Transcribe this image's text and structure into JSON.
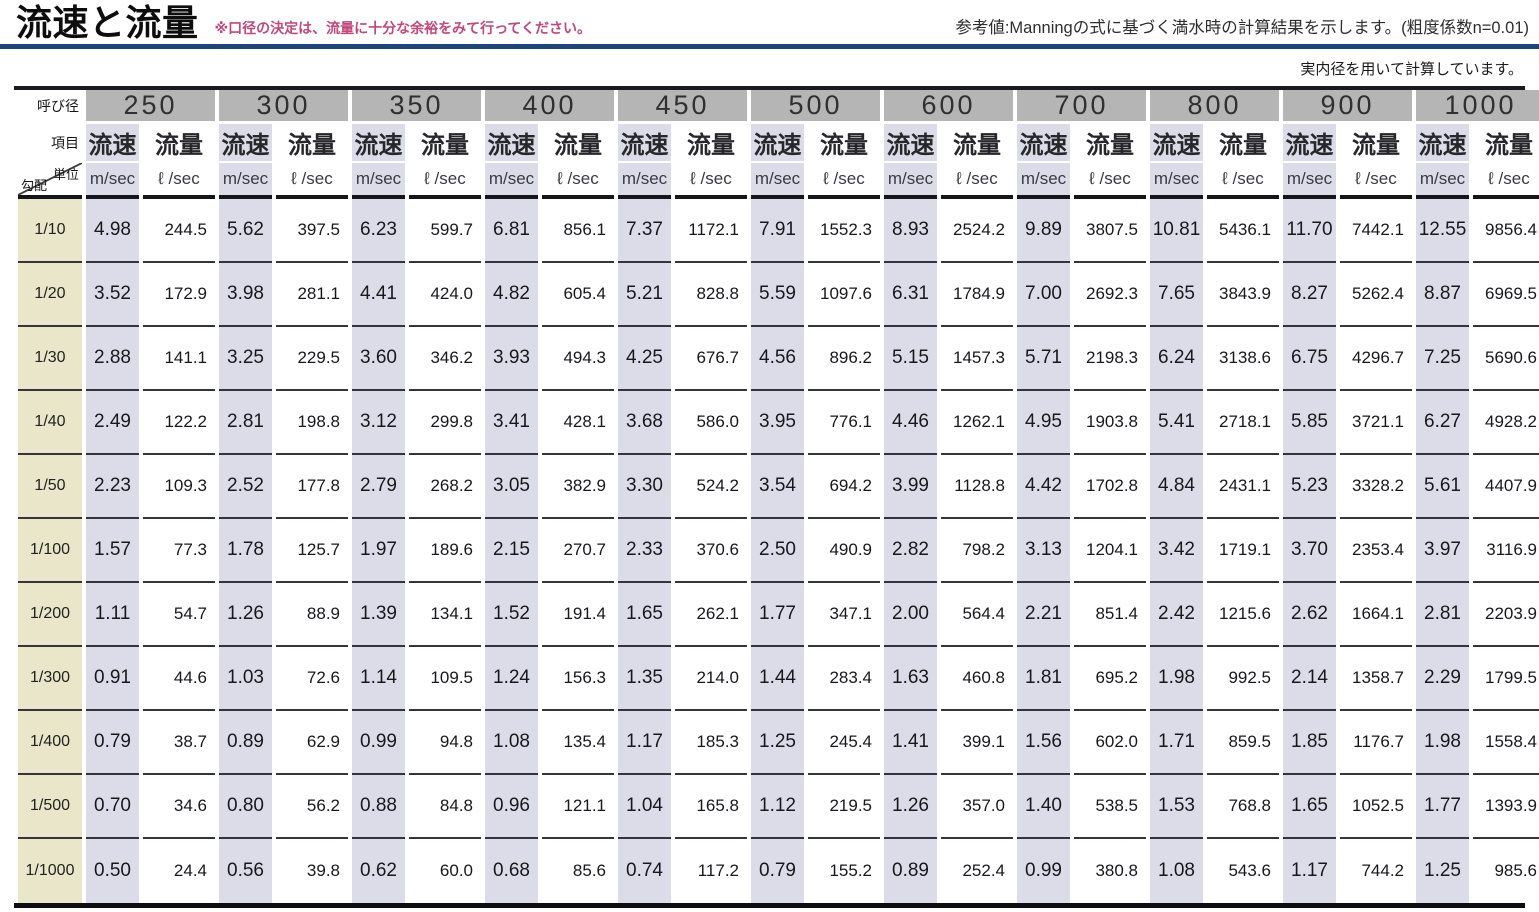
{
  "page": {
    "title": "流速と流量",
    "title_note": "※口径の決定は、流量に十分な余裕をみて行ってください。",
    "reference_note": "参考値:Manningの式に基づく満水時の計算結果を示します。(粗度係数n=0.01)",
    "calc_note": "実内径を用いて計算しています。"
  },
  "colors": {
    "rule_blue": "#1c4579",
    "note_pink": "#c2477b",
    "velocity_column_bg": "#dcdce8",
    "flow_column_bg": "#ffffff",
    "slope_column_bg": "#eae6ca",
    "diameter_header_bg": "#b5b5b5",
    "grid_line": "#34343f"
  },
  "table": {
    "corner": {
      "diameter_label": "呼び径",
      "item_label": "項目",
      "unit_label": "単位",
      "slope_label": "勾配"
    },
    "item_labels": {
      "velocity": "流速",
      "flow": "流量"
    },
    "unit_labels": {
      "velocity": "m/sec",
      "flow": "ℓ /sec"
    },
    "diameters": [
      "250",
      "300",
      "350",
      "400",
      "450",
      "500",
      "600",
      "700",
      "800",
      "900",
      "1000"
    ],
    "rows": [
      {
        "slope": "1/10",
        "values": [
          "4.98",
          "244.5",
          "5.62",
          "397.5",
          "6.23",
          "599.7",
          "6.81",
          "856.1",
          "7.37",
          "1172.1",
          "7.91",
          "1552.3",
          "8.93",
          "2524.2",
          "9.89",
          "3807.5",
          "10.81",
          "5436.1",
          "11.70",
          "7442.1",
          "12.55",
          "9856.4"
        ]
      },
      {
        "slope": "1/20",
        "values": [
          "3.52",
          "172.9",
          "3.98",
          "281.1",
          "4.41",
          "424.0",
          "4.82",
          "605.4",
          "5.21",
          "828.8",
          "5.59",
          "1097.6",
          "6.31",
          "1784.9",
          "7.00",
          "2692.3",
          "7.65",
          "3843.9",
          "8.27",
          "5262.4",
          "8.87",
          "6969.5"
        ]
      },
      {
        "slope": "1/30",
        "values": [
          "2.88",
          "141.1",
          "3.25",
          "229.5",
          "3.60",
          "346.2",
          "3.93",
          "494.3",
          "4.25",
          "676.7",
          "4.56",
          "896.2",
          "5.15",
          "1457.3",
          "5.71",
          "2198.3",
          "6.24",
          "3138.6",
          "6.75",
          "4296.7",
          "7.25",
          "5690.6"
        ]
      },
      {
        "slope": "1/40",
        "values": [
          "2.49",
          "122.2",
          "2.81",
          "198.8",
          "3.12",
          "299.8",
          "3.41",
          "428.1",
          "3.68",
          "586.0",
          "3.95",
          "776.1",
          "4.46",
          "1262.1",
          "4.95",
          "1903.8",
          "5.41",
          "2718.1",
          "5.85",
          "3721.1",
          "6.27",
          "4928.2"
        ]
      },
      {
        "slope": "1/50",
        "values": [
          "2.23",
          "109.3",
          "2.52",
          "177.8",
          "2.79",
          "268.2",
          "3.05",
          "382.9",
          "3.30",
          "524.2",
          "3.54",
          "694.2",
          "3.99",
          "1128.8",
          "4.42",
          "1702.8",
          "4.84",
          "2431.1",
          "5.23",
          "3328.2",
          "5.61",
          "4407.9"
        ]
      },
      {
        "slope": "1/100",
        "values": [
          "1.57",
          "77.3",
          "1.78",
          "125.7",
          "1.97",
          "189.6",
          "2.15",
          "270.7",
          "2.33",
          "370.6",
          "2.50",
          "490.9",
          "2.82",
          "798.2",
          "3.13",
          "1204.1",
          "3.42",
          "1719.1",
          "3.70",
          "2353.4",
          "3.97",
          "3116.9"
        ]
      },
      {
        "slope": "1/200",
        "values": [
          "1.11",
          "54.7",
          "1.26",
          "88.9",
          "1.39",
          "134.1",
          "1.52",
          "191.4",
          "1.65",
          "262.1",
          "1.77",
          "347.1",
          "2.00",
          "564.4",
          "2.21",
          "851.4",
          "2.42",
          "1215.6",
          "2.62",
          "1664.1",
          "2.81",
          "2203.9"
        ]
      },
      {
        "slope": "1/300",
        "values": [
          "0.91",
          "44.6",
          "1.03",
          "72.6",
          "1.14",
          "109.5",
          "1.24",
          "156.3",
          "1.35",
          "214.0",
          "1.44",
          "283.4",
          "1.63",
          "460.8",
          "1.81",
          "695.2",
          "1.98",
          "992.5",
          "2.14",
          "1358.7",
          "2.29",
          "1799.5"
        ]
      },
      {
        "slope": "1/400",
        "values": [
          "0.79",
          "38.7",
          "0.89",
          "62.9",
          "0.99",
          "94.8",
          "1.08",
          "135.4",
          "1.17",
          "185.3",
          "1.25",
          "245.4",
          "1.41",
          "399.1",
          "1.56",
          "602.0",
          "1.71",
          "859.5",
          "1.85",
          "1176.7",
          "1.98",
          "1558.4"
        ]
      },
      {
        "slope": "1/500",
        "values": [
          "0.70",
          "34.6",
          "0.80",
          "56.2",
          "0.88",
          "84.8",
          "0.96",
          "121.1",
          "1.04",
          "165.8",
          "1.12",
          "219.5",
          "1.26",
          "357.0",
          "1.40",
          "538.5",
          "1.53",
          "768.8",
          "1.65",
          "1052.5",
          "1.77",
          "1393.9"
        ]
      },
      {
        "slope": "1/1000",
        "values": [
          "0.50",
          "24.4",
          "0.56",
          "39.8",
          "0.62",
          "60.0",
          "0.68",
          "85.6",
          "0.74",
          "117.2",
          "0.79",
          "155.2",
          "0.89",
          "252.4",
          "0.99",
          "380.8",
          "1.08",
          "543.6",
          "1.17",
          "744.2",
          "1.25",
          "985.6"
        ]
      }
    ]
  }
}
